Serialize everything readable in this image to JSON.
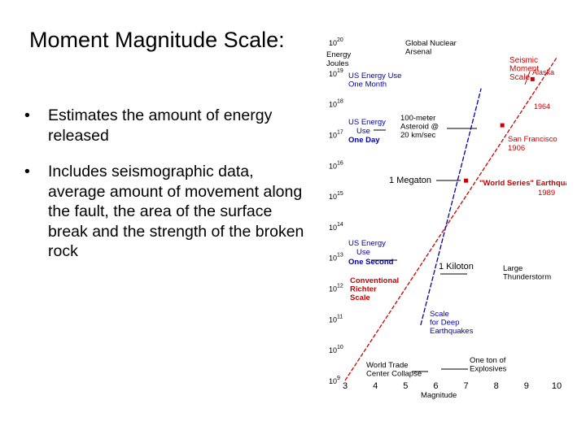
{
  "slide": {
    "title": "Moment Magnitude Scale:",
    "bullet_symbol": "•",
    "bullets": [
      "Estimates the amount of energy released",
      "Includes seismographic data, average amount of movement along the fault, the area of the surface break and the strength of the broken rock"
    ]
  },
  "colors": {
    "red": "#cc0000",
    "blue": "#0000aa",
    "black": "#000000"
  },
  "chart_data": {
    "type": "line",
    "xlabel": "Magnitude",
    "ylabel": "Energy Joules",
    "x_ticks": [
      "3",
      "4",
      "5",
      "6",
      "7",
      "8",
      "9",
      "10"
    ],
    "xlim": [
      3,
      10
    ],
    "y_exponents": [
      "20",
      "19",
      "18",
      "17",
      "16",
      "15",
      "14",
      "13",
      "12",
      "11",
      "10",
      "9"
    ],
    "y_base": "10",
    "ylim_exponent": [
      9,
      20
    ],
    "series": [
      {
        "name": "Seismic Moment Scale",
        "color": "#cc0000",
        "x": [
          3,
          10
        ],
        "y_exponent": [
          9,
          19.5
        ]
      },
      {
        "name": "Conventional Richter Scale",
        "color": "#0000aa",
        "x": [
          5.5,
          7.5
        ],
        "y_exponent": [
          10.8,
          18.5
        ]
      }
    ],
    "earthquakes": [
      {
        "label": "Alaska",
        "year": "1964",
        "magnitude": 9.2,
        "energy_exponent": 18.8
      },
      {
        "label": "San Francisco",
        "year": "1906",
        "magnitude": 8.2,
        "energy_exponent": 17.3
      },
      {
        "label": "\"World Series\" Earthquake,",
        "year": "1989",
        "magnitude": 7.0,
        "energy_exponent": 15.5
      }
    ],
    "annotations": {
      "seismic_moment": [
        "Seismic",
        "Moment",
        "Scale"
      ],
      "conventional_richter": [
        "Conventional",
        "Richter",
        "Scale"
      ],
      "deep_scale": [
        "Scale",
        "for Deep",
        "Earthquakes"
      ],
      "global_nuclear": [
        "Global Nuclear",
        "Arsenal"
      ],
      "us_month": [
        "US Energy Use",
        "One Month"
      ],
      "us_day": [
        "US Energy",
        "Use",
        "One Day"
      ],
      "asteroid": [
        "100-meter",
        "Asteroid @",
        "20 km/sec"
      ],
      "us_second": [
        "US Energy",
        "Use",
        "One Second"
      ],
      "megaton": "1 Megaton",
      "kiloton": "1 Kiloton",
      "thunderstorm": [
        "Large",
        "Thunderstorm"
      ],
      "explosives": [
        "One ton of",
        "Explosives"
      ],
      "wtc": [
        "World Trade",
        "Center Collapse"
      ]
    }
  }
}
